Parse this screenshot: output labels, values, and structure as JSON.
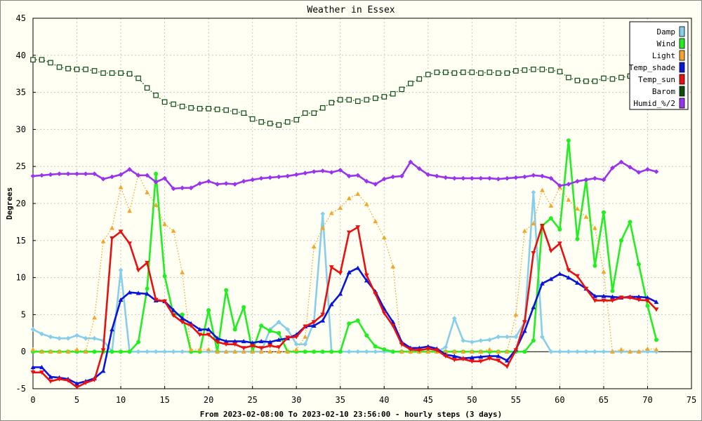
{
  "chart_data": {
    "type": "line",
    "title": "Weather in Essex",
    "ylabel": "Degrees",
    "xlabel": "From 2023-02-08:00 To 2023-02-10 23:56:00 - hourly steps (3 days)",
    "xlim": [
      0,
      75
    ],
    "ylim": [
      -5,
      45
    ],
    "x_ticks": [
      0,
      5,
      10,
      15,
      20,
      25,
      30,
      35,
      40,
      45,
      50,
      55,
      60,
      65,
      70,
      75
    ],
    "y_ticks": [
      -5,
      0,
      5,
      10,
      15,
      20,
      25,
      30,
      35,
      40,
      45
    ],
    "grid": true,
    "legend_position": "top-right",
    "series": [
      {
        "name": "Damp",
        "color": "#87ceeb",
        "marker": "diamond",
        "style": "solid",
        "values": [
          3.0,
          2.4,
          2.0,
          1.8,
          1.8,
          2.2,
          1.8,
          1.8,
          1.5,
          0,
          11.0,
          0,
          0,
          0,
          0,
          0,
          0,
          0,
          0,
          0,
          0,
          0,
          0,
          0,
          0,
          0,
          0,
          3.0,
          4.0,
          3.0,
          1.0,
          1.0,
          4.0,
          18.6,
          0,
          0,
          0,
          0,
          0,
          0,
          0,
          0,
          0,
          0,
          0,
          0,
          0,
          0.6,
          4.5,
          1.5,
          1.3,
          1.5,
          1.6,
          2.0,
          2.0,
          2.0,
          4.0,
          21.5,
          2.0,
          0,
          0,
          0,
          0,
          0,
          0,
          0,
          0,
          0,
          0,
          0,
          0,
          0
        ]
      },
      {
        "name": "Wind",
        "color": "#22ee22",
        "marker": "circle",
        "style": "solid",
        "values": [
          0,
          0,
          0,
          0,
          0,
          0,
          0,
          0,
          0,
          0,
          0,
          0,
          1.3,
          8.5,
          24.0,
          10.2,
          5.0,
          5.0,
          0,
          0,
          5.6,
          0,
          8.3,
          3.0,
          6.0,
          0,
          3.5,
          2.8,
          2.5,
          0,
          0,
          0,
          0,
          0,
          0,
          0,
          3.8,
          4.2,
          2.2,
          0.7,
          0.3,
          0,
          0,
          0,
          0,
          0,
          0,
          0,
          0,
          0,
          0,
          0,
          0,
          0,
          0,
          0,
          0,
          1.5,
          17.0,
          18.0,
          16.5,
          28.5,
          15.2,
          23.2,
          11.6,
          18.8,
          8.2,
          15.0,
          17.5,
          11.8,
          6.2,
          1.6
        ]
      },
      {
        "name": "Light",
        "color": "#f4a62a",
        "marker": "triangle-up",
        "style": "dotted",
        "values": [
          0.3,
          0,
          0,
          0,
          0,
          0.3,
          0,
          4.6,
          14.9,
          16.7,
          22.2,
          19.0,
          23.9,
          21.5,
          19.8,
          17.2,
          16.3,
          10.7,
          0.3,
          0.3,
          0.3,
          0,
          0,
          0,
          0,
          0,
          0,
          0,
          0,
          0,
          0.3,
          2.0,
          14.2,
          16.7,
          18.7,
          19.4,
          20.7,
          21.3,
          19.9,
          17.6,
          15.4,
          11.5,
          0,
          0,
          0,
          0,
          0,
          0,
          0,
          0,
          0,
          0,
          0.3,
          0,
          0,
          5.0,
          16.3,
          17.3,
          21.8,
          19.7,
          22.2,
          20.5,
          19.3,
          18.2,
          16.7,
          10.8,
          0,
          0.3,
          0,
          0,
          0.4,
          0.3
        ]
      },
      {
        "name": "Temp_shade",
        "color": "#0a14d8",
        "marker": "triangle-up",
        "style": "solid",
        "values": [
          -2.1,
          -2.1,
          -3.4,
          -3.5,
          -3.7,
          -4.3,
          -4.0,
          -3.6,
          -2.6,
          3.0,
          7.0,
          8.0,
          7.9,
          7.8,
          6.9,
          6.8,
          5.6,
          4.5,
          3.8,
          3.0,
          3.0,
          1.8,
          1.4,
          1.4,
          1.4,
          1.2,
          1.4,
          1.3,
          1.6,
          1.8,
          2.3,
          3.4,
          3.5,
          4.2,
          6.4,
          7.8,
          10.7,
          11.3,
          9.6,
          8.1,
          5.8,
          4.0,
          1.3,
          0.5,
          0.5,
          0.7,
          0.4,
          -0.4,
          -0.6,
          -0.9,
          -0.8,
          -0.7,
          -0.6,
          -0.6,
          -1.2,
          0.3,
          2.8,
          6.0,
          9.2,
          9.8,
          10.5,
          10.0,
          9.3,
          8.5,
          7.5,
          7.5,
          7.4,
          7.3,
          7.4,
          7.4,
          7.3,
          6.7
        ]
      },
      {
        "name": "Temp_sun",
        "color": "#e81010",
        "marker": "triangle-down",
        "style": "solid",
        "values": [
          -2.8,
          -2.8,
          -4.0,
          -3.7,
          -3.9,
          -4.8,
          -4.2,
          -3.8,
          0.2,
          15.3,
          16.2,
          14.6,
          11.0,
          12.0,
          7.0,
          6.8,
          4.9,
          4.0,
          3.5,
          2.3,
          2.3,
          1.3,
          1.0,
          1.0,
          0.5,
          0.8,
          0.5,
          0.8,
          0.6,
          1.9,
          2.0,
          3.4,
          4.0,
          5.0,
          11.4,
          10.6,
          16.1,
          16.8,
          10.3,
          7.8,
          5.2,
          3.5,
          1.0,
          0.3,
          0.2,
          0.4,
          0.2,
          -0.6,
          -1.1,
          -1.0,
          -1.3,
          -1.3,
          -0.9,
          -1.2,
          -2.0,
          0.2,
          4.0,
          13.3,
          17.0,
          13.6,
          14.6,
          11.0,
          10.2,
          8.5,
          6.9,
          6.9,
          6.9,
          7.3,
          7.3,
          7.0,
          6.9,
          5.7
        ]
      },
      {
        "name": "Barom",
        "color": "#0c4c0c",
        "marker": "square",
        "style": "dotted",
        "values": [
          39.4,
          39.4,
          39.0,
          38.4,
          38.2,
          38.1,
          38.1,
          37.9,
          37.6,
          37.6,
          37.6,
          37.5,
          36.9,
          35.6,
          34.6,
          33.7,
          33.4,
          33.1,
          32.9,
          32.8,
          32.8,
          32.7,
          32.6,
          32.4,
          32.2,
          31.4,
          31.0,
          30.8,
          30.6,
          31.0,
          31.3,
          32.2,
          32.2,
          32.9,
          33.6,
          34.0,
          34.0,
          33.8,
          34.0,
          34.2,
          34.4,
          34.8,
          35.4,
          36.2,
          36.8,
          37.4,
          37.7,
          37.7,
          37.6,
          37.7,
          37.7,
          37.6,
          37.7,
          37.6,
          37.6,
          37.9,
          38.0,
          38.1,
          38.1,
          38.0,
          37.8,
          37.0,
          36.6,
          36.5,
          36.5,
          36.9,
          36.8,
          37.0,
          37.2,
          37.3,
          37.2,
          37.1
        ]
      },
      {
        "name": "Humid_%/2",
        "color": "#9933ee",
        "marker": "diamond",
        "style": "solid",
        "values": [
          23.7,
          23.8,
          23.9,
          24.0,
          24.0,
          24.0,
          24.0,
          24.0,
          23.3,
          23.6,
          23.9,
          24.6,
          23.8,
          23.8,
          22.9,
          23.4,
          22.0,
          22.1,
          22.1,
          22.7,
          23.0,
          22.6,
          22.7,
          22.6,
          23.0,
          23.2,
          23.4,
          23.5,
          23.6,
          23.7,
          23.9,
          24.1,
          24.3,
          24.4,
          24.2,
          24.5,
          23.7,
          23.8,
          23.0,
          22.6,
          23.3,
          23.6,
          23.7,
          25.6,
          24.7,
          23.9,
          23.7,
          23.5,
          23.4,
          23.4,
          23.4,
          23.4,
          23.4,
          23.3,
          23.4,
          23.5,
          23.6,
          23.8,
          23.7,
          23.4,
          22.4,
          22.6,
          23.0,
          23.2,
          23.4,
          23.2,
          24.8,
          25.6,
          24.9,
          24.2,
          24.6,
          24.3
        ]
      }
    ]
  }
}
